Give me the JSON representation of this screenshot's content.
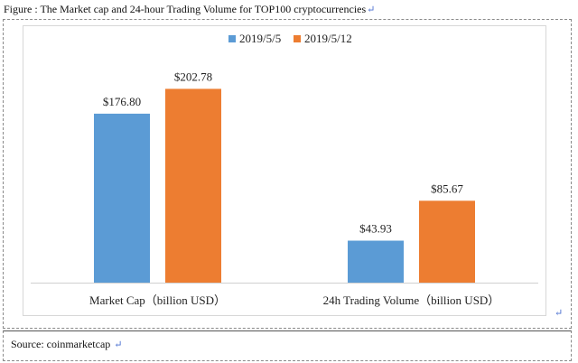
{
  "caption": "Figure : The Market cap and 24-hour Trading Volume for TOP100 cryptocurrencies",
  "source": "Source: coinmarketcap",
  "paragraph_mark": "↵",
  "chart_data": {
    "type": "bar",
    "categories": [
      "Market Cap（billion USD）",
      "24h Trading Volume（billion USD）"
    ],
    "series": [
      {
        "name": "2019/5/5",
        "values": [
          176.8,
          43.93
        ],
        "labels": [
          "$176.80",
          "$43.93"
        ],
        "color": "#5b9bd5"
      },
      {
        "name": "2019/5/12",
        "values": [
          202.78,
          85.67
        ],
        "labels": [
          "$202.78",
          "$85.67"
        ],
        "color": "#ed7d31"
      }
    ],
    "title": "",
    "xlabel": "",
    "ylabel": "",
    "ylim": [
      0,
      240
    ],
    "grid": false,
    "legend": "top-center"
  }
}
